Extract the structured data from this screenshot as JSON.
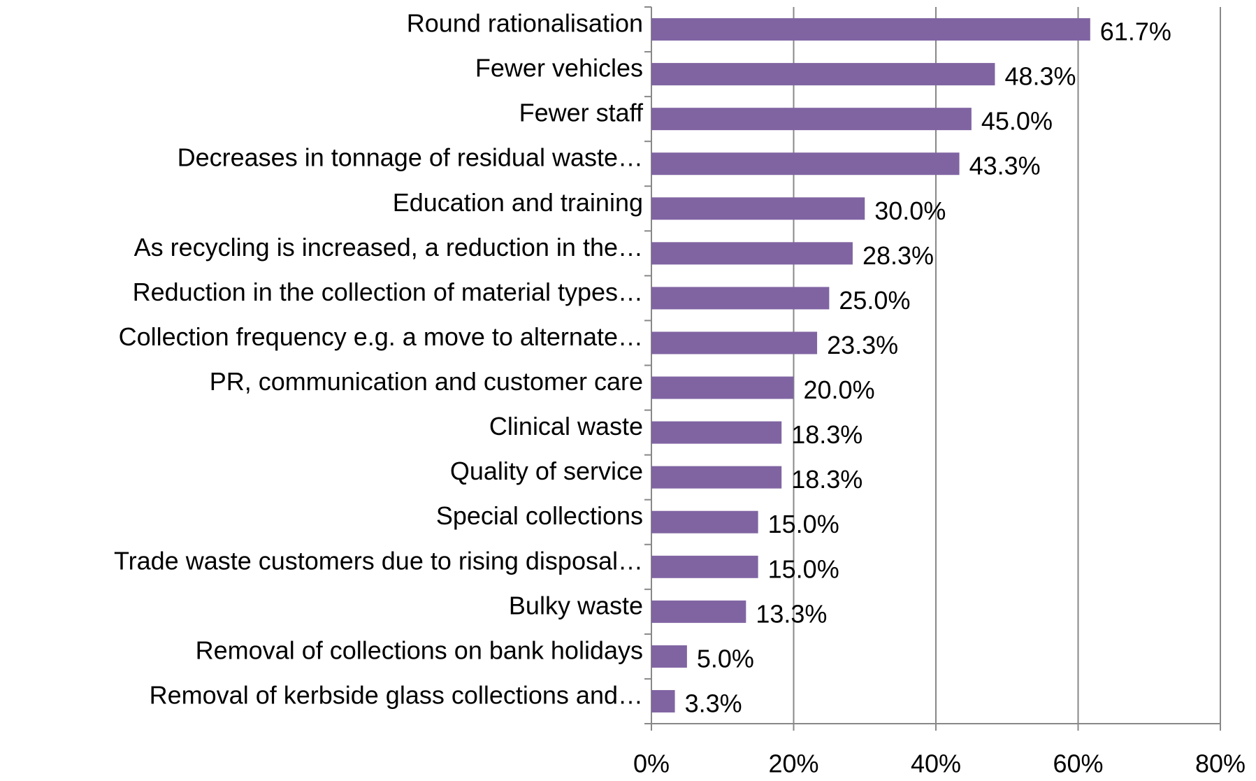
{
  "chart_data": {
    "type": "bar",
    "orientation": "horizontal",
    "categories": [
      "Round rationalisation",
      "Fewer vehicles",
      "Fewer staff",
      "Decreases in tonnage of residual waste…",
      "Education and training",
      "As recycling is increased, a reduction in the…",
      "Reduction in the collection of material types…",
      "Collection frequency e.g. a move to alternate…",
      "PR, communication and customer care",
      "Clinical waste",
      "Quality of service",
      "Special collections",
      "Trade waste customers due to rising disposal…",
      "Bulky waste",
      "Removal of collections on bank holidays",
      "Removal of kerbside glass collections and…"
    ],
    "values": [
      61.7,
      48.3,
      45.0,
      43.3,
      30.0,
      28.3,
      25.0,
      23.3,
      20.0,
      18.3,
      18.3,
      15.0,
      15.0,
      13.3,
      5.0,
      3.3
    ],
    "value_labels": [
      "61.7%",
      "48.3%",
      "45.0%",
      "43.3%",
      "30.0%",
      "28.3%",
      "25.0%",
      "23.3%",
      "20.0%",
      "18.3%",
      "18.3%",
      "15.0%",
      "15.0%",
      "13.3%",
      "5.0%",
      "3.3%"
    ],
    "color": "#8064a2",
    "xlim": [
      0,
      80
    ],
    "xticks": [
      {
        "value": 0,
        "label": "0%"
      },
      {
        "value": 20,
        "label": "20%"
      },
      {
        "value": 40,
        "label": "40%"
      },
      {
        "value": 60,
        "label": "60%"
      },
      {
        "value": 80,
        "label": "80%"
      }
    ],
    "grid": true
  }
}
